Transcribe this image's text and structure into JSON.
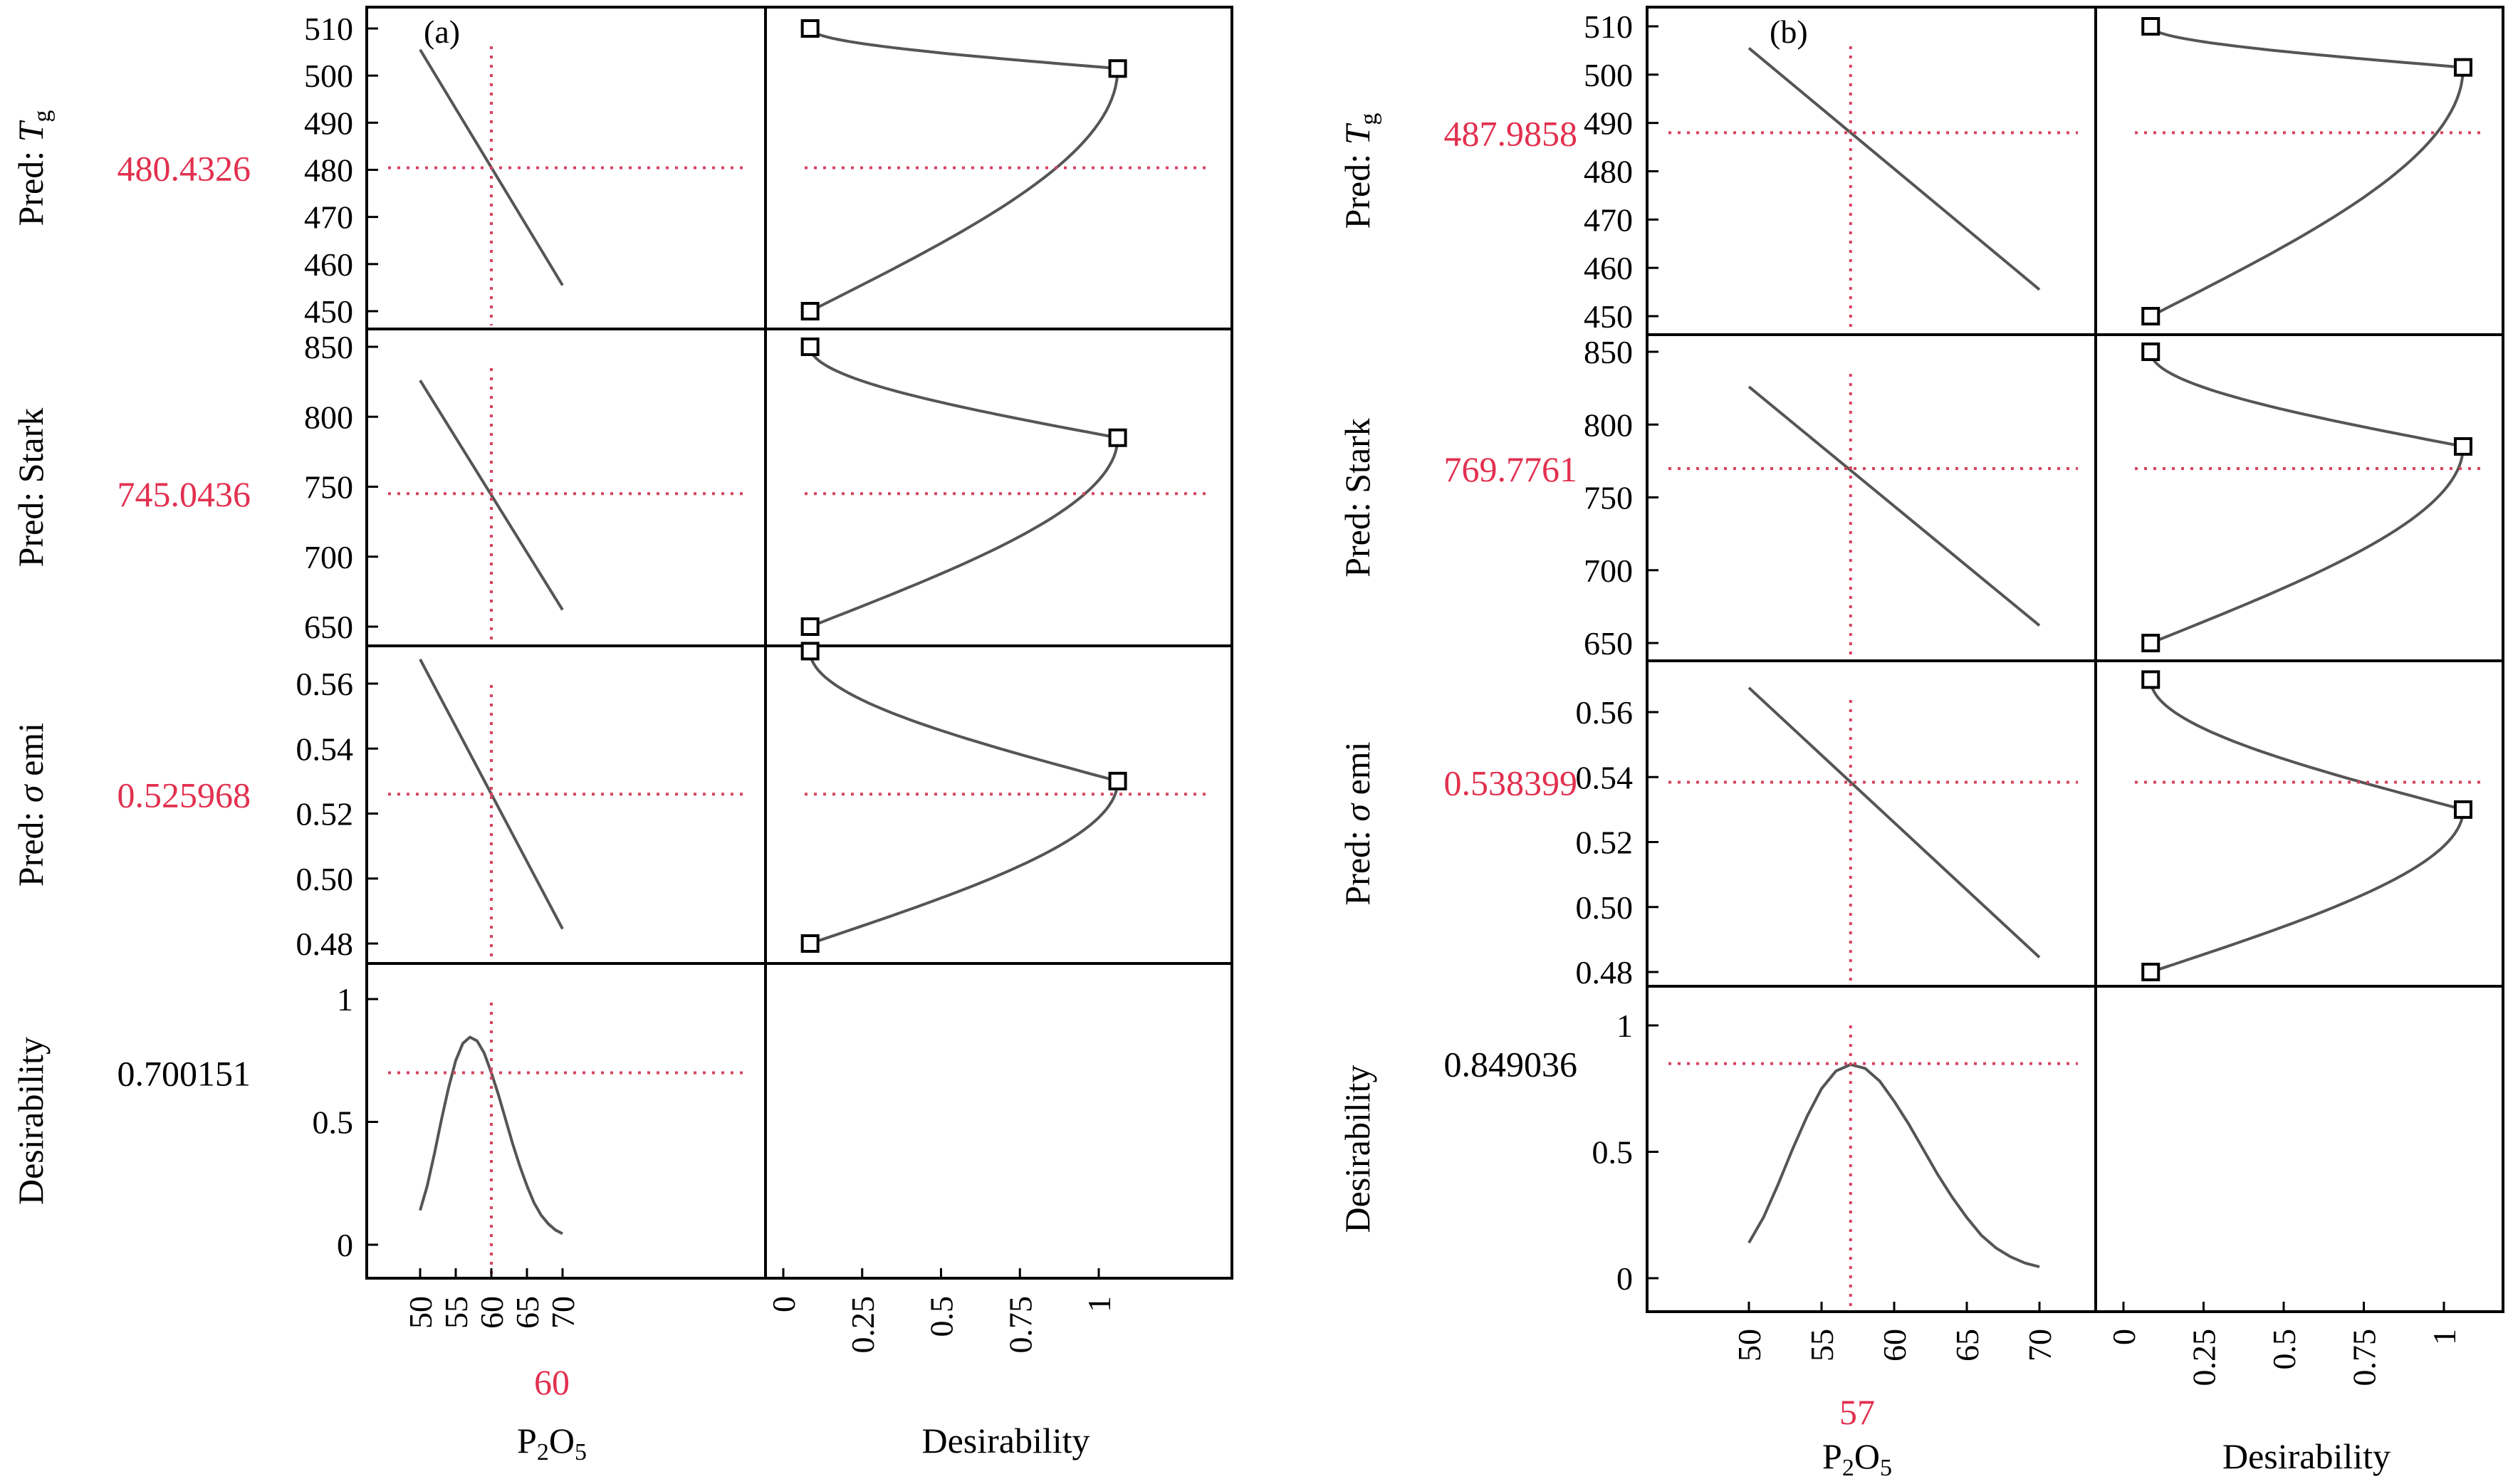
{
  "colors": {
    "ink": "#000000",
    "curve": "#555555",
    "reference": "#d6435f",
    "highlight": "#e2304f"
  },
  "panels": [
    {
      "id": "a",
      "label": "(a)",
      "x_label": "P₂O₅",
      "x_label_main": "P",
      "x_label_sub1": "2",
      "x_label_mid": "O",
      "x_label_sub2": "5",
      "x_setting": "60",
      "desirability_axis_label": "Desirability",
      "rows": [
        {
          "key": "tg",
          "ylabel_prefix": "Pred: ",
          "ylabel_italic": "T",
          "ylabel_sub": "g",
          "value_label": "480.4326",
          "value_highlight": true
        },
        {
          "key": "stark",
          "ylabel_prefix": "Pred: Stark",
          "ylabel_italic": "",
          "ylabel_sub": "",
          "value_label": "745.0436",
          "value_highlight": true
        },
        {
          "key": "sigma",
          "ylabel_prefix": "Pred: ",
          "ylabel_italic": "σ",
          "ylabel_sub": "",
          "ylabel_suffix": " emi",
          "value_label": "0.525968",
          "value_highlight": true
        },
        {
          "key": "desirability",
          "ylabel_prefix": "Desirability",
          "ylabel_italic": "",
          "ylabel_sub": "",
          "value_label": "0.700151",
          "value_highlight": false
        }
      ]
    },
    {
      "id": "b",
      "label": "(b)",
      "x_label": "P₂O₅",
      "x_label_main": "P",
      "x_label_sub1": "2",
      "x_label_mid": "O",
      "x_label_sub2": "5",
      "x_setting": "57",
      "desirability_axis_label": "Desirability",
      "rows": [
        {
          "key": "tg",
          "ylabel_prefix": "Pred: ",
          "ylabel_italic": "T",
          "ylabel_sub": "g",
          "value_label": "487.9858",
          "value_highlight": true
        },
        {
          "key": "stark",
          "ylabel_prefix": "Pred: Stark",
          "ylabel_italic": "",
          "ylabel_sub": "",
          "value_label": "769.7761",
          "value_highlight": true
        },
        {
          "key": "sigma",
          "ylabel_prefix": "Pred: ",
          "ylabel_italic": "σ",
          "ylabel_sub": "",
          "ylabel_suffix": " emi",
          "value_label": "0.538399",
          "value_highlight": true
        },
        {
          "key": "desirability",
          "ylabel_prefix": "Desirability",
          "ylabel_italic": "",
          "ylabel_sub": "",
          "value_label": "0.849036",
          "value_highlight": false
        }
      ]
    }
  ],
  "chart_data": [
    {
      "type": "line",
      "panel": "a",
      "x_factor": {
        "name": "P₂O₅",
        "ticks": [
          50,
          55,
          60,
          65,
          70
        ],
        "setting": 60
      },
      "desirability_axis": {
        "ticks": [
          0,
          0.25,
          0.5,
          0.75,
          1
        ],
        "tick_labels": [
          "0",
          "0.25",
          "0.5",
          "0.75",
          "1"
        ]
      },
      "responses": [
        {
          "name": "Pred: Tg",
          "ylim": [
            448,
            512
          ],
          "ticks": [
            450,
            460,
            470,
            480,
            490,
            500,
            510
          ],
          "prediction": 480.4326,
          "line": [
            [
              50,
              505.5
            ],
            [
              70,
              455.5
            ]
          ],
          "desirability_curve": {
            "low": 450,
            "high": 510,
            "target": 501.5,
            "target_desirability": 1.06,
            "end_desirability": 0.085
          }
        },
        {
          "name": "Pred: Stark",
          "ylim": [
            638,
            856
          ],
          "ticks": [
            650,
            700,
            750,
            800,
            850
          ],
          "prediction": 745.0436,
          "line": [
            [
              50,
              826
            ],
            [
              70,
              662
            ]
          ],
          "desirability_curve": {
            "low": 650,
            "high": 850,
            "target": 785,
            "target_desirability": 1.06,
            "end_desirability": 0.085
          }
        },
        {
          "name": "Pred: σ emi",
          "ylim": [
            0.474,
            0.574
          ],
          "ticks": [
            0.48,
            0.5,
            0.52,
            0.54,
            0.56
          ],
          "tick_labels": [
            "0.48",
            "0.50",
            "0.52",
            "0.54",
            "0.56"
          ],
          "prediction": 0.525968,
          "line": [
            [
              50,
              0.5675
            ],
            [
              70,
              0.4845
            ]
          ],
          "desirability_curve": {
            "low": 0.48,
            "high": 0.57,
            "target": 0.53,
            "target_desirability": 1.06,
            "end_desirability": 0.085
          }
        },
        {
          "name": "Desirability",
          "ylim": [
            -0.1,
            1.1
          ],
          "ticks": [
            0,
            0.5,
            1
          ],
          "tick_labels": [
            "0",
            "0.5",
            "1"
          ],
          "prediction": 0.700151,
          "curve": [
            [
              50,
              0.14
            ],
            [
              51,
              0.24
            ],
            [
              52,
              0.37
            ],
            [
              53,
              0.51
            ],
            [
              54,
              0.64
            ],
            [
              55,
              0.75
            ],
            [
              56,
              0.82
            ],
            [
              57,
              0.845
            ],
            [
              58,
              0.83
            ],
            [
              59,
              0.78
            ],
            [
              60,
              0.7
            ],
            [
              61,
              0.61
            ],
            [
              62,
              0.51
            ],
            [
              63,
              0.41
            ],
            [
              64,
              0.32
            ],
            [
              65,
              0.24
            ],
            [
              66,
              0.17
            ],
            [
              67,
              0.12
            ],
            [
              68,
              0.085
            ],
            [
              69,
              0.06
            ],
            [
              70,
              0.045
            ]
          ]
        }
      ]
    },
    {
      "type": "line",
      "panel": "b",
      "x_factor": {
        "name": "P₂O₅",
        "ticks": [
          50,
          55,
          60,
          65,
          70
        ],
        "setting": 57
      },
      "desirability_axis": {
        "ticks": [
          0,
          0.25,
          0.5,
          0.75,
          1
        ],
        "tick_labels": [
          "0",
          "0.25",
          "0.5",
          "0.75",
          "1"
        ]
      },
      "responses": [
        {
          "name": "Pred: Tg",
          "ylim": [
            448,
            512
          ],
          "ticks": [
            450,
            460,
            470,
            480,
            490,
            500,
            510
          ],
          "prediction": 487.9858,
          "line": [
            [
              50,
              505.5
            ],
            [
              70,
              455.5
            ]
          ],
          "desirability_curve": {
            "low": 450,
            "high": 510,
            "target": 501.5,
            "target_desirability": 1.06,
            "end_desirability": 0.085
          }
        },
        {
          "name": "Pred: Stark",
          "ylim": [
            638,
            856
          ],
          "ticks": [
            650,
            700,
            750,
            800,
            850
          ],
          "prediction": 769.7761,
          "line": [
            [
              50,
              826
            ],
            [
              70,
              662
            ]
          ],
          "desirability_curve": {
            "low": 650,
            "high": 850,
            "target": 785,
            "target_desirability": 1.06,
            "end_desirability": 0.085
          }
        },
        {
          "name": "Pred: σ emi",
          "ylim": [
            0.474,
            0.574
          ],
          "ticks": [
            0.48,
            0.5,
            0.52,
            0.54,
            0.56
          ],
          "tick_labels": [
            "0.48",
            "0.50",
            "0.52",
            "0.54",
            "0.56"
          ],
          "prediction": 0.538399,
          "line": [
            [
              50,
              0.5675
            ],
            [
              70,
              0.4845
            ]
          ],
          "desirability_curve": {
            "low": 0.48,
            "high": 0.57,
            "target": 0.53,
            "target_desirability": 1.06,
            "end_desirability": 0.085
          }
        },
        {
          "name": "Desirability",
          "ylim": [
            -0.1,
            1.1
          ],
          "ticks": [
            0,
            0.5,
            1
          ],
          "tick_labels": [
            "0",
            "0.5",
            "1"
          ],
          "prediction": 0.849036,
          "curve": [
            [
              50,
              0.14
            ],
            [
              51,
              0.24
            ],
            [
              52,
              0.37
            ],
            [
              53,
              0.51
            ],
            [
              54,
              0.64
            ],
            [
              55,
              0.75
            ],
            [
              56,
              0.82
            ],
            [
              57,
              0.845
            ],
            [
              58,
              0.83
            ],
            [
              59,
              0.78
            ],
            [
              60,
              0.7
            ],
            [
              61,
              0.61
            ],
            [
              62,
              0.51
            ],
            [
              63,
              0.41
            ],
            [
              64,
              0.32
            ],
            [
              65,
              0.24
            ],
            [
              66,
              0.17
            ],
            [
              67,
              0.12
            ],
            [
              68,
              0.085
            ],
            [
              69,
              0.06
            ],
            [
              70,
              0.045
            ]
          ]
        }
      ]
    }
  ]
}
